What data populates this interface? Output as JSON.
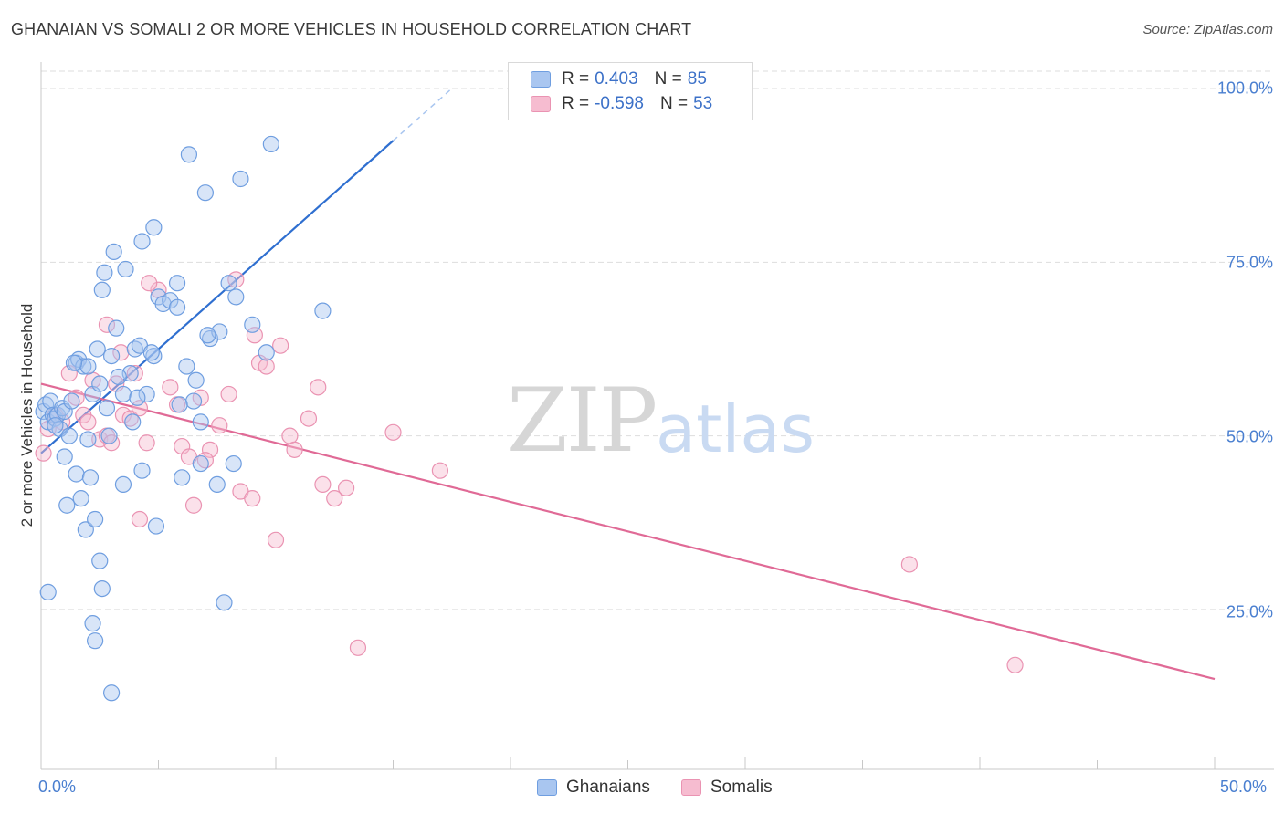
{
  "title": "GHANAIAN VS SOMALI 2 OR MORE VEHICLES IN HOUSEHOLD CORRELATION CHART",
  "source": "Source: ZipAtlas.com",
  "watermark": {
    "zip": "ZIP",
    "atlas": "atlas"
  },
  "stats": [
    {
      "r_label": "R =",
      "r_value": "0.403",
      "n_label": "N =",
      "n_value": "85"
    },
    {
      "r_label": "R =",
      "r_value": "-0.598",
      "n_label": "N =",
      "n_value": "53"
    }
  ],
  "legend": [
    "Ghanaians",
    "Somalis"
  ],
  "colors": {
    "ghanaian_fill": "#a9c6f0",
    "ghanaian_stroke": "#6f9ee0",
    "ghanaian_line": "#2f6fd0",
    "somali_fill": "#f6bcd0",
    "somali_stroke": "#ea93b2",
    "somali_line": "#e06a96",
    "tick": "#4a7fd0",
    "grid": "#dddddd"
  },
  "chart_data": {
    "type": "scatter",
    "title": "GHANAIAN VS SOMALI 2 OR MORE VEHICLES IN HOUSEHOLD CORRELATION CHART",
    "xlabel": "",
    "ylabel": "2 or more Vehicles in Household",
    "xlim": [
      0,
      50
    ],
    "ylim": [
      2,
      102.5
    ],
    "x_tick_labels": [
      "0.0%",
      "50.0%"
    ],
    "y_ticks": [
      25,
      50,
      75,
      100
    ],
    "y_tick_labels": [
      "25.0%",
      "50.0%",
      "75.0%",
      "100.0%"
    ],
    "grid": true,
    "series": [
      {
        "name": "Ghanaians",
        "r": 0.403,
        "n": 85,
        "trend": {
          "x0": 0,
          "y0": 47.5,
          "x1": 15,
          "y1": 92.5,
          "dash_to_x": 17.5
        },
        "points": [
          [
            0.1,
            53.5
          ],
          [
            0.2,
            54.5
          ],
          [
            0.3,
            52
          ],
          [
            0.4,
            55
          ],
          [
            0.5,
            53
          ],
          [
            0.6,
            52.5
          ],
          [
            0.7,
            53
          ],
          [
            0.8,
            51
          ],
          [
            0.9,
            54
          ],
          [
            1,
            53.5
          ],
          [
            1.2,
            50
          ],
          [
            1.3,
            55
          ],
          [
            1.5,
            60.5
          ],
          [
            1.6,
            61
          ],
          [
            1.8,
            60
          ],
          [
            2,
            60
          ],
          [
            2.2,
            56
          ],
          [
            2.4,
            62.5
          ],
          [
            2.5,
            57.5
          ],
          [
            2.8,
            54
          ],
          [
            3,
            61.5
          ],
          [
            3.2,
            65.5
          ],
          [
            3.5,
            56
          ],
          [
            3.8,
            59
          ],
          [
            4,
            62.5
          ],
          [
            4.2,
            63
          ],
          [
            4.5,
            56
          ],
          [
            4.8,
            61.5
          ],
          [
            5,
            70
          ],
          [
            5.2,
            69
          ],
          [
            5.5,
            69.5
          ],
          [
            5.8,
            68.5
          ],
          [
            6.2,
            60
          ],
          [
            6.5,
            55
          ],
          [
            6.8,
            52
          ],
          [
            7.2,
            64
          ],
          [
            7.6,
            65
          ],
          [
            8,
            72
          ],
          [
            8.3,
            70
          ],
          [
            9,
            66
          ],
          [
            2.6,
            71
          ],
          [
            3.1,
            76.5
          ],
          [
            3.6,
            74
          ],
          [
            4.3,
            78
          ],
          [
            4.8,
            80
          ],
          [
            2.7,
            73.5
          ],
          [
            6.3,
            90.5
          ],
          [
            7.0,
            85
          ],
          [
            8.5,
            87
          ],
          [
            9.8,
            92
          ],
          [
            0.3,
            27.5
          ],
          [
            1.1,
            40
          ],
          [
            1.5,
            44.5
          ],
          [
            1.7,
            41
          ],
          [
            1.9,
            36.5
          ],
          [
            2.1,
            44
          ],
          [
            2.3,
            38
          ],
          [
            2.5,
            32
          ],
          [
            2.6,
            28
          ],
          [
            2.2,
            23
          ],
          [
            2.3,
            20.5
          ],
          [
            3,
            13
          ],
          [
            3.5,
            43
          ],
          [
            4.3,
            45
          ],
          [
            4.9,
            37
          ],
          [
            6.0,
            44
          ],
          [
            6.8,
            46
          ],
          [
            7.5,
            43
          ],
          [
            7.8,
            26
          ],
          [
            8.2,
            46
          ],
          [
            9.6,
            62
          ],
          [
            12,
            68
          ],
          [
            5.8,
            72
          ],
          [
            7.1,
            64.5
          ],
          [
            4.7,
            62
          ],
          [
            3.9,
            52
          ],
          [
            2.9,
            50
          ],
          [
            1.0,
            47
          ],
          [
            6.6,
            58
          ],
          [
            1.4,
            60.5
          ],
          [
            0.6,
            51.5
          ],
          [
            2.0,
            49.5
          ],
          [
            4.1,
            55.5
          ],
          [
            5.9,
            54.5
          ],
          [
            3.3,
            58.5
          ]
        ]
      },
      {
        "name": "Somalis",
        "r": -0.598,
        "n": 53,
        "trend": {
          "x0": 0,
          "y0": 57.5,
          "x1": 50,
          "y1": 15
        },
        "points": [
          [
            0.1,
            47.5
          ],
          [
            0.3,
            51
          ],
          [
            0.6,
            53
          ],
          [
            0.9,
            52
          ],
          [
            1.2,
            59
          ],
          [
            1.5,
            55.5
          ],
          [
            1.8,
            53
          ],
          [
            2,
            52
          ],
          [
            2.2,
            58
          ],
          [
            2.5,
            49.5
          ],
          [
            2.8,
            50
          ],
          [
            3,
            49
          ],
          [
            3.2,
            57.5
          ],
          [
            3.5,
            53
          ],
          [
            3.8,
            52.5
          ],
          [
            4,
            59
          ],
          [
            4.2,
            54
          ],
          [
            4.5,
            49
          ],
          [
            5,
            71
          ],
          [
            5.5,
            57
          ],
          [
            5.8,
            54.5
          ],
          [
            6,
            48.5
          ],
          [
            6.3,
            47
          ],
          [
            6.8,
            55.5
          ],
          [
            7.2,
            48
          ],
          [
            7.6,
            51.5
          ],
          [
            8,
            56
          ],
          [
            8.3,
            72.5
          ],
          [
            9.1,
            64.5
          ],
          [
            9.3,
            60.5
          ],
          [
            9.6,
            60
          ],
          [
            10.2,
            63
          ],
          [
            10.6,
            50
          ],
          [
            10.8,
            48
          ],
          [
            11.4,
            52.5
          ],
          [
            11.8,
            57
          ],
          [
            12.5,
            41
          ],
          [
            13,
            42.5
          ],
          [
            15,
            50.5
          ],
          [
            17,
            45
          ],
          [
            2.8,
            66
          ],
          [
            3.4,
            62
          ],
          [
            4.6,
            72
          ],
          [
            6.5,
            40
          ],
          [
            7.0,
            46.5
          ],
          [
            8.5,
            42
          ],
          [
            9.0,
            41
          ],
          [
            10.0,
            35
          ],
          [
            12.0,
            43
          ],
          [
            13.5,
            19.5
          ],
          [
            37,
            31.5
          ],
          [
            41.5,
            17
          ],
          [
            4.2,
            38
          ]
        ]
      }
    ]
  }
}
